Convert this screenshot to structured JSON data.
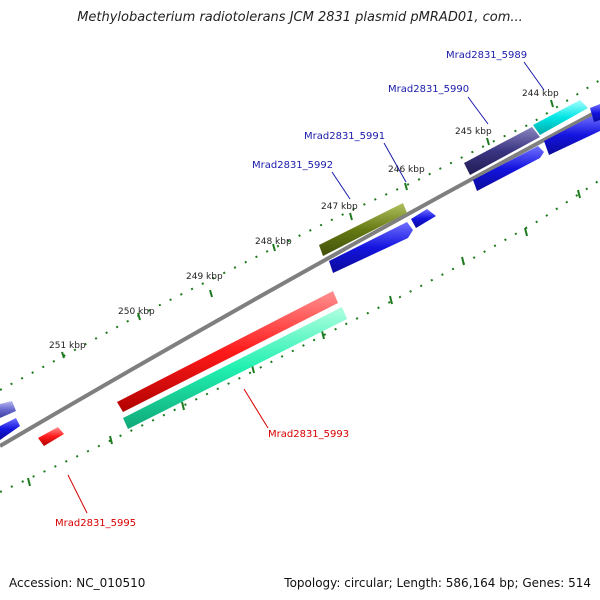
{
  "title": "Methylobacterium radiotolerans JCM 2831 plasmid pMRAD01, com...",
  "footer": {
    "accession": "Accession: NC_010510",
    "topology": "Topology: circular; Length: 586,164 bp; Genes: 514"
  },
  "colors": {
    "backbone": "#7f7f7f",
    "tick_dots": "#1e7a1e",
    "forward_label": "#1a1aaa",
    "reverse_label": "#d80000"
  },
  "ticks": [
    "244 kbp",
    "245 kbp",
    "246 kbp",
    "247 kbp",
    "248 kbp",
    "249 kbp",
    "250 kbp",
    "251 kbp"
  ],
  "genes": [
    {
      "label": "Mrad2831_5989",
      "strand": "forward",
      "color": "#00e5e5"
    },
    {
      "label": "Mrad2831_5990",
      "strand": "forward",
      "color": "#3a3580"
    },
    {
      "label": "Mrad2831_5991",
      "strand": "forward",
      "color": "#1414e0"
    },
    {
      "label": "Mrad2831_5992",
      "strand": "forward",
      "color": "#667a14"
    },
    {
      "label": "Mrad2831_5993",
      "strand": "reverse",
      "color": "#ff1a1a"
    },
    {
      "label": "Mrad2831_5995",
      "strand": "reverse",
      "color": "#ff1a1a"
    }
  ]
}
